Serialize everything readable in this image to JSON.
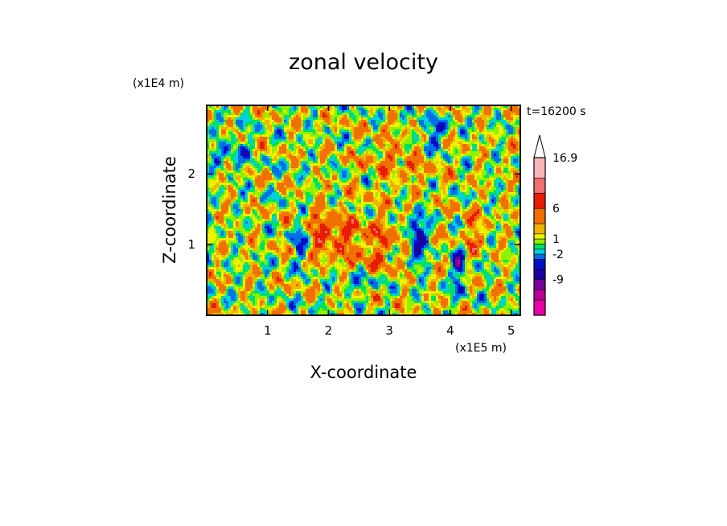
{
  "chart_data": {
    "type": "heatmap",
    "title": "zonal velocity",
    "xlabel": "X-coordinate",
    "ylabel": "Z-coordinate",
    "x_multiplier": "(x1E5 m)",
    "y_multiplier": "(x1E4 m)",
    "time_label": "t=16200 s",
    "xlim": [
      0,
      5.15
    ],
    "ylim": [
      0,
      2.97
    ],
    "x_ticks": [
      {
        "value": 1,
        "label": "1"
      },
      {
        "value": 2,
        "label": "2"
      },
      {
        "value": 3,
        "label": "3"
      },
      {
        "value": 4,
        "label": "4"
      },
      {
        "value": 5,
        "label": "5"
      }
    ],
    "y_ticks": [
      {
        "value": 1,
        "label": "1"
      },
      {
        "value": 2,
        "label": "2"
      }
    ],
    "colorbar": {
      "max_label": "16.9",
      "labels": [
        {
          "value": 16.9,
          "label": "16.9"
        },
        {
          "value": 6,
          "label": "6"
        },
        {
          "value": 1,
          "label": "1"
        },
        {
          "value": -2,
          "label": "-2"
        },
        {
          "value": -9,
          "label": "-9"
        }
      ],
      "levels": [
        -14,
        -11,
        -9,
        -6,
        -4,
        -2,
        -1,
        0,
        1,
        2,
        3,
        6,
        9,
        12,
        16.9
      ],
      "colors": [
        "#e800a8",
        "#b80098",
        "#7a0098",
        "#1c00a0",
        "#0010c8",
        "#0070e8",
        "#00d0e0",
        "#00e060",
        "#90f000",
        "#f0f000",
        "#f0b400",
        "#f07000",
        "#e81c00",
        "#f07070",
        "#f8b4b4"
      ]
    },
    "field": {
      "description": "2D field of zonal velocity in X–Z plane; values in m/s as indicated by colorbar",
      "features": [
        {
          "name": "strong negative core",
          "x": 3.45,
          "z": 1.1
        },
        {
          "name": "strong negative core",
          "x": 4.2,
          "z": 0.8
        },
        {
          "name": "negative core",
          "x": 1.55,
          "z": 1.05
        },
        {
          "name": "positive core",
          "x": 1.85,
          "z": 1.1
        },
        {
          "name": "positive core",
          "x": 4.35,
          "z": 1.15
        },
        {
          "name": "negative blob",
          "x": 3.7,
          "z": 2.5
        }
      ]
    }
  }
}
